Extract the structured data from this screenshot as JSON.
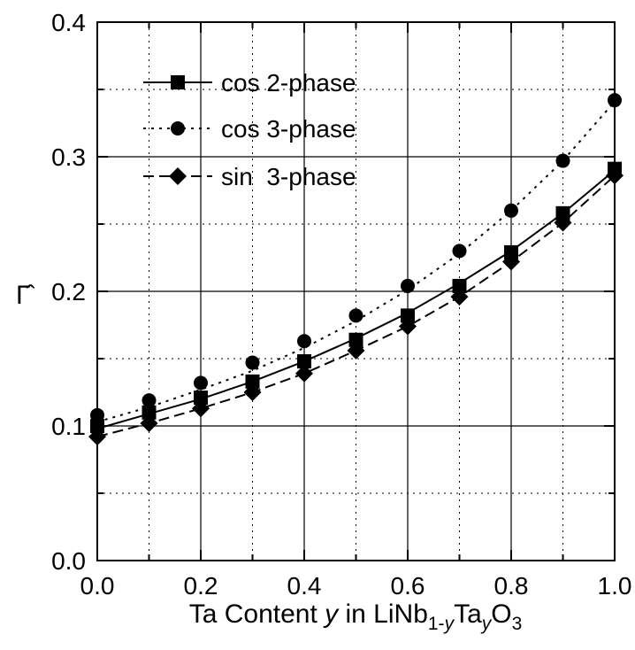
{
  "chart_data": {
    "type": "line",
    "xlabel": {
      "prefix": "Ta Content ",
      "var": "y",
      "mid": " in LiNb",
      "sub1": "1-",
      "sub1_var": "y",
      "mid2": "Ta",
      "sub2_var": "y",
      "mid3": "O",
      "sub3": "3"
    },
    "ylabel": "Γ̂",
    "xlim": [
      0.0,
      1.0
    ],
    "ylim": [
      0.0,
      0.4
    ],
    "x_ticks": [
      "0.0",
      "0.2",
      "0.4",
      "0.6",
      "0.8",
      "1.0"
    ],
    "y_ticks": [
      "0.0",
      "0.1",
      "0.2",
      "0.3",
      "0.4"
    ],
    "grid": "dotted at minor, solid at major",
    "legend_position": "top-left",
    "series": [
      {
        "name": "cos 2-phase",
        "marker": "square",
        "line": "solid",
        "x": [
          0.0,
          0.1,
          0.2,
          0.3,
          0.4,
          0.5,
          0.6,
          0.7,
          0.8,
          0.9,
          1.0
        ],
        "points": [
          0.1,
          0.11,
          0.121,
          0.133,
          0.148,
          0.164,
          0.182,
          0.204,
          0.229,
          0.258,
          0.291
        ],
        "fit": [
          0.098,
          0.109,
          0.12,
          0.133,
          0.148,
          0.165,
          0.184,
          0.206,
          0.23,
          0.258,
          0.29
        ]
      },
      {
        "name": "cos 3-phase",
        "marker": "circle",
        "line": "dotted",
        "x": [
          0.0,
          0.1,
          0.2,
          0.3,
          0.4,
          0.5,
          0.6,
          0.7,
          0.8,
          0.9,
          1.0
        ],
        "points": [
          0.108,
          0.119,
          0.132,
          0.147,
          0.163,
          0.182,
          0.204,
          0.23,
          0.26,
          0.297,
          0.342
        ],
        "fit": [
          0.103,
          0.114,
          0.127,
          0.141,
          0.158,
          0.178,
          0.201,
          0.228,
          0.26,
          0.297,
          0.341
        ]
      },
      {
        "name": "sin  3-phase",
        "marker": "diamond",
        "line": "dashed",
        "x": [
          0.0,
          0.1,
          0.2,
          0.3,
          0.4,
          0.5,
          0.6,
          0.7,
          0.8,
          0.9,
          1.0
        ],
        "points": [
          0.092,
          0.102,
          0.113,
          0.125,
          0.139,
          0.156,
          0.174,
          0.196,
          0.222,
          0.251,
          0.286
        ],
        "fit": [
          0.092,
          0.102,
          0.113,
          0.125,
          0.139,
          0.156,
          0.174,
          0.196,
          0.222,
          0.251,
          0.286
        ]
      }
    ]
  }
}
